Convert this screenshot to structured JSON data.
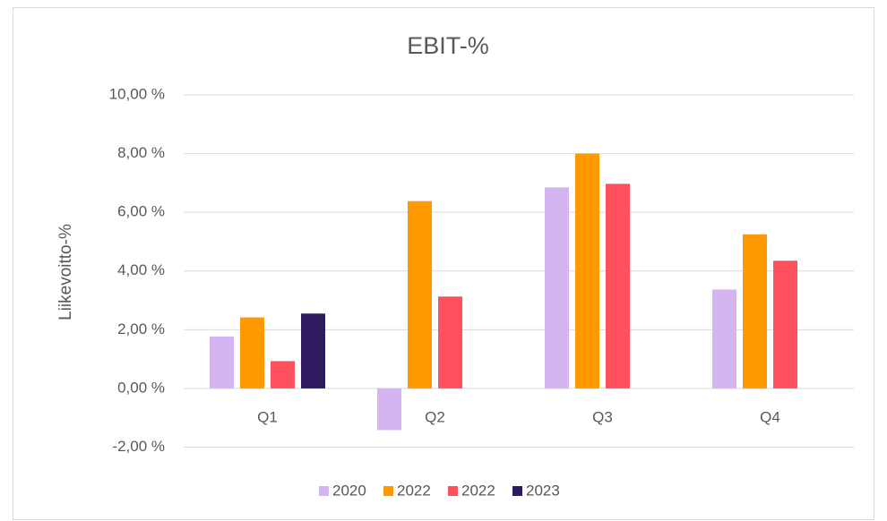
{
  "chart_data": {
    "type": "bar",
    "title": "EBIT-%",
    "y_label": "Liikevoitto-%",
    "categories": [
      "Q1",
      "Q2",
      "Q3",
      "Q4"
    ],
    "series": [
      {
        "name": "2020",
        "color": "#d4b5f2",
        "values": [
          1.77,
          -1.42,
          6.85,
          3.37
        ]
      },
      {
        "name": "2022",
        "color": "#ff9900",
        "values": [
          2.42,
          6.38,
          8.0,
          5.25
        ]
      },
      {
        "name": "2022",
        "color": "#ff505e",
        "values": [
          0.93,
          3.13,
          6.97,
          4.35
        ]
      },
      {
        "name": "2023",
        "color": "#2e1a5e",
        "values": [
          2.55,
          null,
          null,
          null
        ]
      }
    ],
    "ylim": [
      -2,
      10
    ],
    "yticks": [
      {
        "value": -2,
        "label": "-2,00 %"
      },
      {
        "value": 0,
        "label": "0,00 %"
      },
      {
        "value": 2,
        "label": "2,00 %"
      },
      {
        "value": 4,
        "label": "4,00 %"
      },
      {
        "value": 6,
        "label": "6,00 %"
      },
      {
        "value": 8,
        "label": "8,00 %"
      },
      {
        "value": 10,
        "label": "10,00 %"
      }
    ],
    "grid": true,
    "legend": "bottom"
  }
}
